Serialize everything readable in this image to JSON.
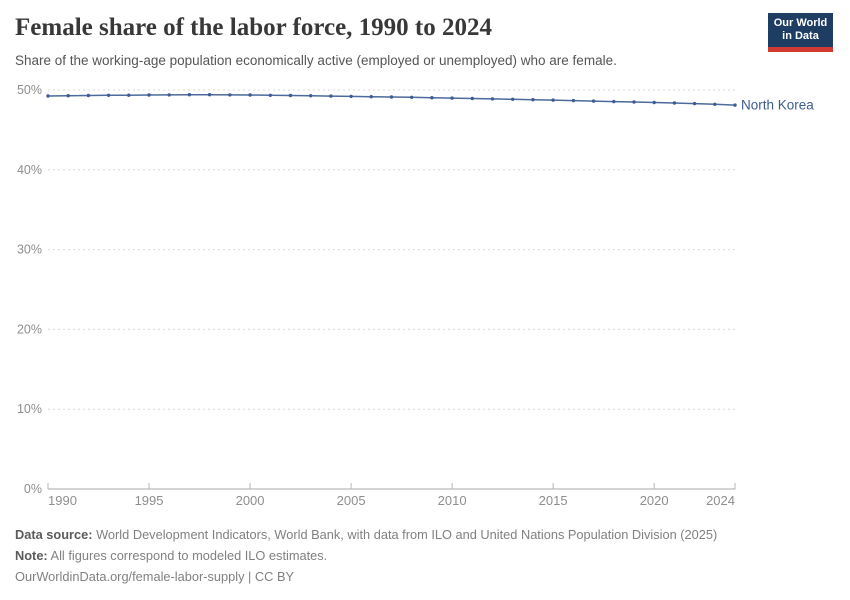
{
  "header": {
    "title": "Female share of the labor force, 1990 to 2024",
    "subtitle": "Share of the working-age population economically active (employed or unemployed) who are female.",
    "logo": {
      "line1": "Our World",
      "line2": "in Data",
      "bg_color": "#1d3d63",
      "bar_color": "#cf3b33"
    }
  },
  "chart_data": {
    "type": "line",
    "title": "Female share of the labor force, 1990 to 2024",
    "xlabel": "",
    "ylabel": "",
    "xlim": [
      1990,
      2024
    ],
    "ylim": [
      0,
      50
    ],
    "x_ticks": [
      1990,
      1995,
      2000,
      2005,
      2010,
      2015,
      2020,
      2024
    ],
    "y_ticks": [
      0,
      10,
      20,
      30,
      40,
      50
    ],
    "y_tick_suffix": "%",
    "grid": "horizontal-dashed",
    "legend_position": "line-end-label",
    "colors": {
      "grid": "#d9d9d9",
      "axis": "#a8a8a8",
      "tick": "#b5b5b5",
      "tick_label": "#8e8e8e"
    },
    "series": [
      {
        "name": "North Korea",
        "color": "#4c6a9c",
        "point_color": "#3e5c94",
        "label_color": "#3d5c8f",
        "x": [
          1990,
          1991,
          1992,
          1993,
          1994,
          1995,
          1996,
          1997,
          1998,
          1999,
          2000,
          2001,
          2002,
          2003,
          2004,
          2005,
          2006,
          2007,
          2008,
          2009,
          2010,
          2011,
          2012,
          2013,
          2014,
          2015,
          2016,
          2017,
          2018,
          2019,
          2020,
          2021,
          2022,
          2023,
          2024
        ],
        "values": [
          49.25,
          49.28,
          49.31,
          49.33,
          49.35,
          49.37,
          49.39,
          49.41,
          49.41,
          49.39,
          49.37,
          49.34,
          49.31,
          49.28,
          49.24,
          49.2,
          49.16,
          49.12,
          49.08,
          49.04,
          48.99,
          48.94,
          48.89,
          48.84,
          48.79,
          48.73,
          48.67,
          48.61,
          48.55,
          48.49,
          48.43,
          48.37,
          48.3,
          48.21,
          48.11
        ]
      }
    ]
  },
  "footer": {
    "datasource_label": "Data source:",
    "datasource_text": " World Development Indicators, World Bank, with data from ILO and United Nations Population Division (2025)",
    "note_label": "Note:",
    "note_text": " All figures correspond to modeled ILO estimates.",
    "url_line": "OurWorldinData.org/female-labor-supply | CC BY"
  }
}
